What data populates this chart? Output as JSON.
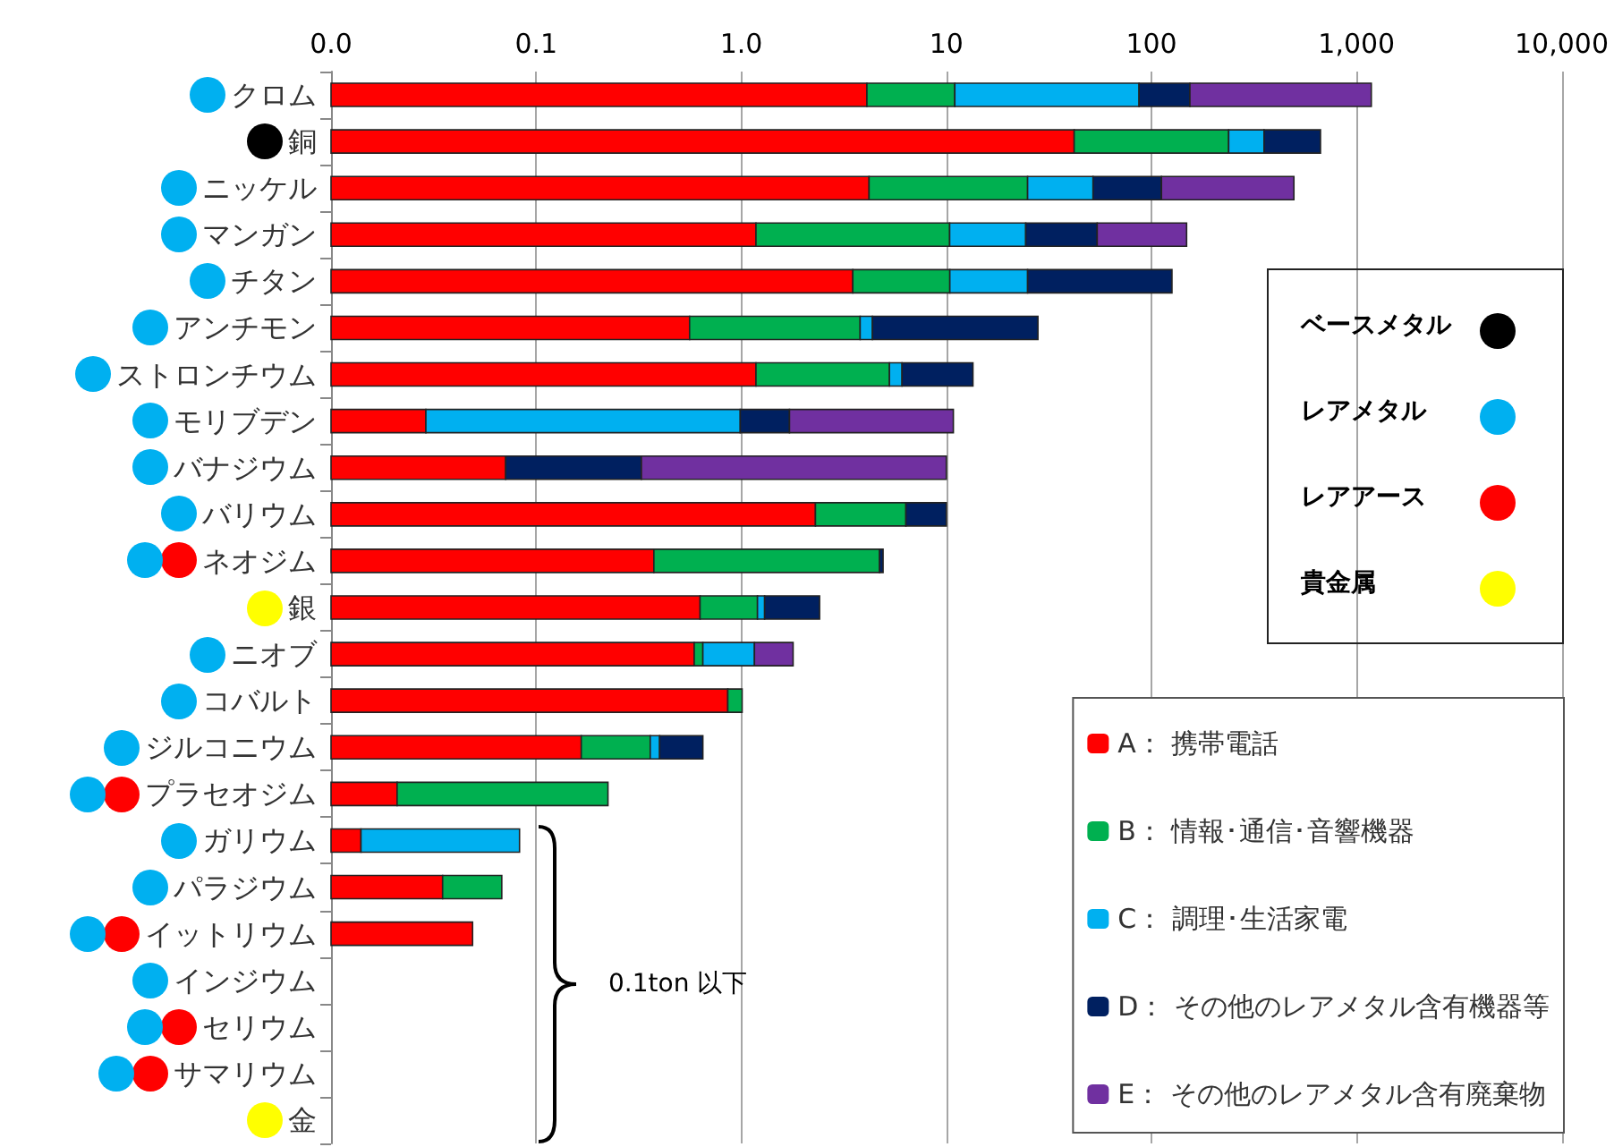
{
  "chart_data": {
    "type": "bar",
    "orientation": "horizontal",
    "stacked": true,
    "log": "x",
    "categories": [
      "クロム",
      "銅",
      "ニッケル",
      "マンガン",
      "チタン",
      "アンチモン",
      "ストロンチウム",
      "モリブデン",
      "バナジウム",
      "バリウム",
      "ネオジム",
      "銀",
      "ニオブ",
      "コバルト",
      "ジルコニウム",
      "プラセオジム",
      "ガリウム",
      "パラジウム",
      "イットリウム",
      "インジウム",
      "セリウム",
      "サマリウム",
      "金"
    ],
    "series": [
      {
        "name": "A： 携帯電話",
        "color": "#ff0000",
        "values": [
          4.1,
          42,
          4.2,
          1.18,
          3.5,
          0.56,
          1.18,
          0.029,
          0.071,
          2.3,
          0.375,
          0.63,
          0.59,
          0.86,
          0.166,
          0.021,
          0.014,
          0.035,
          0.049,
          null,
          null,
          null,
          null
        ]
      },
      {
        "name": "B： 情報･通信･音響機器",
        "color": "#00b050",
        "values": [
          6.9,
          196,
          20.7,
          9.2,
          6.9,
          3.24,
          4.1,
          null,
          null,
          4.05,
          4.35,
          0.57,
          0.06,
          0.15,
          0.194,
          0.203,
          null,
          0.033,
          null,
          null,
          null,
          null,
          null
        ]
      },
      {
        "name": "C： 調理･生活家電",
        "color": "#00b0f0",
        "values": [
          76,
          116,
          27,
          14,
          14.5,
          0.56,
          0.8,
          0.96,
          null,
          null,
          null,
          0.1,
          0.51,
          null,
          0.04,
          null,
          0.069,
          null,
          null,
          null,
          null,
          null,
          null
        ]
      },
      {
        "name": "D： その他のレアメタル含有機器等",
        "color": "#002060",
        "values": [
          67,
          313,
          60,
          30,
          101,
          23.6,
          7.4,
          0.73,
          0.255,
          3.65,
          0.19,
          1.11,
          null,
          null,
          0.25,
          null,
          null,
          null,
          null,
          null,
          null,
          null,
          null
        ]
      },
      {
        "name": "E： その他のレアメタル含有廃棄物",
        "color": "#7030a0",
        "values": [
          1026,
          null,
          383,
          94,
          null,
          null,
          null,
          9.1,
          9.67,
          null,
          null,
          null,
          0.63,
          null,
          null,
          null,
          null,
          null,
          null,
          null,
          null,
          null,
          null
        ]
      }
    ],
    "xlim": [
      0.01,
      10000
    ],
    "xticks": [
      {
        "value": 0.01,
        "label": "0.0"
      },
      0.1,
      {
        "value": 1,
        "label": "1.0"
      },
      10,
      100,
      {
        "value": 1000,
        "label": "1,000"
      },
      {
        "value": 10000,
        "label": "10,000"
      }
    ],
    "grid": "x",
    "legend": "bottom right",
    "annotations": [
      "ベースメタル",
      "レアメタル",
      "レアアース",
      "貴金属",
      "0.1ton 以下"
    ]
  }
}
